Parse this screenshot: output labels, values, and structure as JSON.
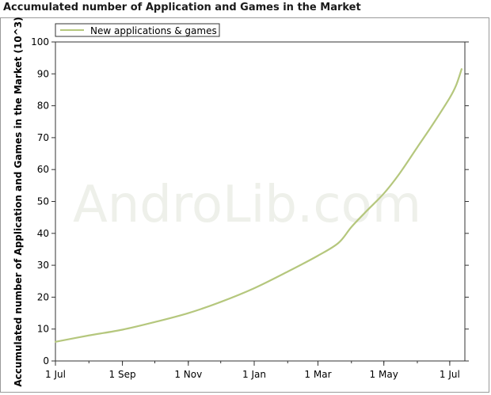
{
  "chart_data": {
    "type": "line",
    "title": "Accumulated number of Application and Games in the Market",
    "ylabel": "Accumulated number of Application and Games in the Market (10^3)",
    "xlabel": "",
    "watermark": "AndroLib.com",
    "legend": {
      "position": "top-left"
    },
    "grid": false,
    "ylim": [
      0,
      100
    ],
    "yticks": [
      0,
      10,
      20,
      30,
      40,
      50,
      60,
      70,
      80,
      90,
      100
    ],
    "xlim": [
      "2008-07-01",
      "2009-07-15"
    ],
    "xticks": [
      {
        "date": "2008-07-01",
        "label": "1 Jul"
      },
      {
        "date": "2008-09-01",
        "label": "1 Sep"
      },
      {
        "date": "2008-11-01",
        "label": "1 Nov"
      },
      {
        "date": "2009-01-01",
        "label": "1 Jan"
      },
      {
        "date": "2009-03-01",
        "label": "1 Mar"
      },
      {
        "date": "2009-05-01",
        "label": "1 May"
      },
      {
        "date": "2009-07-01",
        "label": "1 Jul"
      }
    ],
    "series": [
      {
        "name": "New applications & games",
        "color": "#b5c77d",
        "points": [
          {
            "x": "2008-07-01",
            "y": 6
          },
          {
            "x": "2008-08-01",
            "y": 8
          },
          {
            "x": "2008-09-01",
            "y": 9.8
          },
          {
            "x": "2008-10-01",
            "y": 12.2
          },
          {
            "x": "2008-11-01",
            "y": 15
          },
          {
            "x": "2008-12-01",
            "y": 18.5
          },
          {
            "x": "2009-01-01",
            "y": 22.8
          },
          {
            "x": "2009-02-01",
            "y": 28
          },
          {
            "x": "2009-03-01",
            "y": 33
          },
          {
            "x": "2009-03-20",
            "y": 37
          },
          {
            "x": "2009-04-01",
            "y": 42
          },
          {
            "x": "2009-04-15",
            "y": 47
          },
          {
            "x": "2009-05-01",
            "y": 52.5
          },
          {
            "x": "2009-05-15",
            "y": 58.5
          },
          {
            "x": "2009-06-01",
            "y": 67
          },
          {
            "x": "2009-06-15",
            "y": 74
          },
          {
            "x": "2009-07-01",
            "y": 82.5
          },
          {
            "x": "2009-07-07",
            "y": 86.5
          },
          {
            "x": "2009-07-12",
            "y": 91.5
          }
        ]
      }
    ]
  }
}
